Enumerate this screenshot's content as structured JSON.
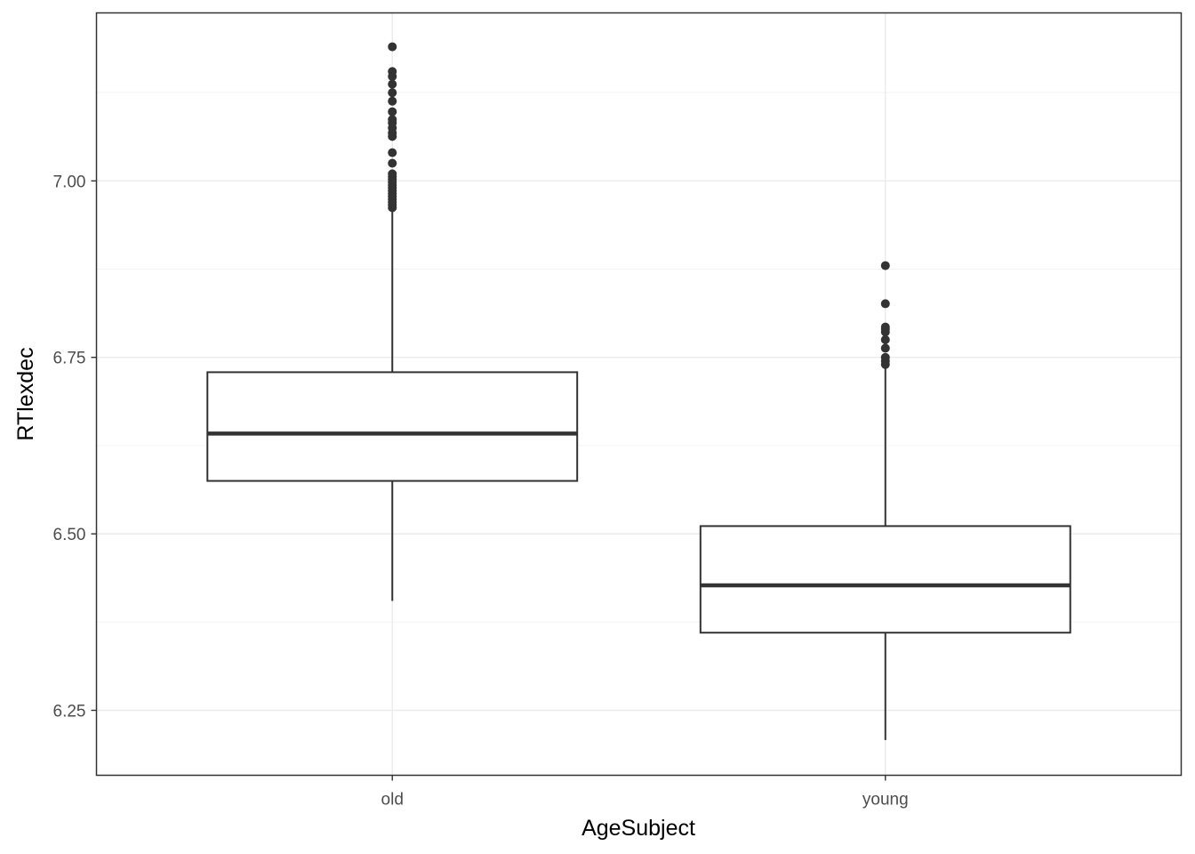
{
  "chart_data": {
    "type": "boxplot",
    "title": "",
    "xlabel": "AgeSubject",
    "ylabel": "RTlexdec",
    "categories": [
      "old",
      "young"
    ],
    "ylim": [
      6.158,
      7.238
    ],
    "yticks": [
      6.25,
      6.5,
      6.75,
      7.0
    ],
    "ytick_labels": [
      "6.25",
      "6.50",
      "6.75",
      "7.00"
    ],
    "grid": true,
    "legend": "none",
    "boxes": [
      {
        "category": "old",
        "whisker_low": 6.405,
        "q1": 6.575,
        "median": 6.642,
        "q3": 6.729,
        "whisker_high": 6.96,
        "outliers": [
          6.962,
          6.966,
          6.97,
          6.974,
          6.978,
          6.982,
          6.986,
          6.99,
          6.994,
          6.998,
          7.002,
          7.006,
          7.01,
          7.025,
          7.04,
          7.063,
          7.068,
          7.075,
          7.082,
          7.087,
          7.098,
          7.113,
          7.125,
          7.137,
          7.148,
          7.155,
          7.19
        ]
      },
      {
        "category": "young",
        "whisker_low": 6.208,
        "q1": 6.36,
        "median": 6.427,
        "q3": 6.511,
        "whisker_high": 6.738,
        "outliers": [
          6.74,
          6.745,
          6.75,
          6.763,
          6.775,
          6.786,
          6.79,
          6.793,
          6.826,
          6.88
        ]
      }
    ],
    "colors": {
      "box_stroke": "#333333",
      "outlier_fill": "#333333",
      "grid_major": "#ebebeb",
      "grid_minor": "#f3f3f3",
      "panel_border": "#333333",
      "tick_label": "#4d4d4d"
    }
  }
}
